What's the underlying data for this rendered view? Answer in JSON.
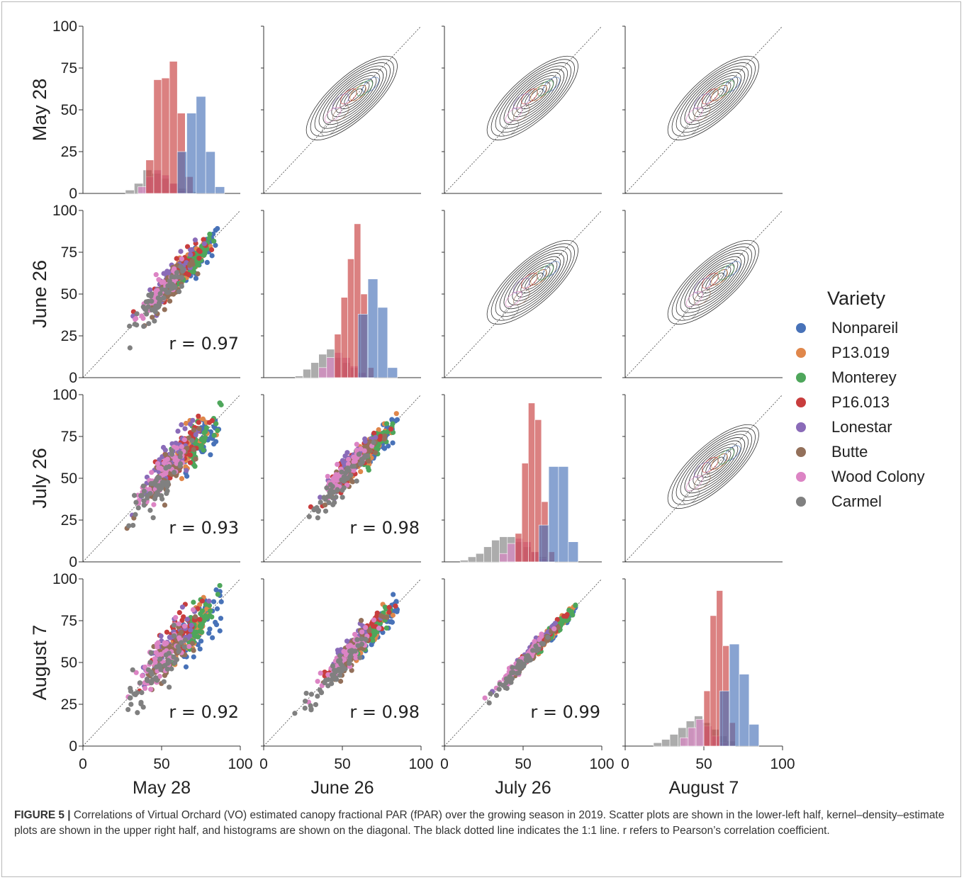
{
  "chart_data": {
    "type": "scatter",
    "variables": [
      "May 28",
      "June 26",
      "July 26",
      "August 7"
    ],
    "axis_range": [
      0,
      100
    ],
    "ticks": [
      0,
      25,
      50,
      75,
      100
    ],
    "x_tick_labels": [
      "0",
      "50",
      "100"
    ],
    "y_tick_labels": [
      "0",
      "25",
      "50",
      "75",
      "100"
    ],
    "legend": {
      "title": "Variety",
      "placement": "right",
      "items": [
        {
          "name": "Nonpareil",
          "color": "#4872b8"
        },
        {
          "name": "P13.019",
          "color": "#e0874b"
        },
        {
          "name": "Monterey",
          "color": "#4ea65b"
        },
        {
          "name": "P16.013",
          "color": "#c83d3d"
        },
        {
          "name": "Lonestar",
          "color": "#8a6bb8"
        },
        {
          "name": "Butte",
          "color": "#93705a"
        },
        {
          "name": "Wood Colony",
          "color": "#dc84c4"
        },
        {
          "name": "Carmel",
          "color": "#808080"
        }
      ]
    },
    "correlations": [
      {
        "x": "May 28",
        "y": "June 26",
        "r": 0.97,
        "label": "r = 0.97"
      },
      {
        "x": "May 28",
        "y": "July 26",
        "r": 0.93,
        "label": "r = 0.93"
      },
      {
        "x": "June 26",
        "y": "July 26",
        "r": 0.98,
        "label": "r = 0.98"
      },
      {
        "x": "May 28",
        "y": "August 7",
        "r": 0.92,
        "label": "r = 0.92"
      },
      {
        "x": "June 26",
        "y": "August 7",
        "r": 0.98,
        "label": "r = 0.98"
      },
      {
        "x": "July 26",
        "y": "August 7",
        "r": 0.99,
        "label": "r = 0.99"
      }
    ],
    "histograms": [
      {
        "date": "May 28",
        "bars": [
          {
            "variety": "Nonpareil",
            "x0": 60,
            "x1": 90,
            "counts": [
              25,
              48,
              58,
              25,
              4
            ]
          },
          {
            "variety": "P16.013",
            "x0": 40,
            "x1": 70,
            "counts": [
              20,
              68,
              69,
              79,
              48,
              10
            ]
          },
          {
            "variety": "Carmel",
            "x0": 27,
            "x1": 72,
            "counts": [
              2,
              6,
              14,
              12,
              9,
              6,
              3,
              1
            ]
          },
          {
            "variety": "Wood Colony",
            "x0": 35,
            "x1": 65,
            "counts": [
              4,
              10,
              14,
              11,
              6,
              2
            ]
          }
        ]
      },
      {
        "date": "June 26",
        "bars": [
          {
            "variety": "Nonpareil",
            "x0": 60,
            "x1": 85,
            "counts": [
              38,
              59,
              42,
              6
            ]
          },
          {
            "variety": "P16.013",
            "x0": 45,
            "x1": 70,
            "counts": [
              26,
              48,
              71,
              92,
              50,
              6
            ]
          },
          {
            "variety": "Carmel",
            "x0": 20,
            "x1": 70,
            "counts": [
              1,
              5,
              9,
              14,
              17,
              12,
              9,
              6,
              3,
              1
            ]
          },
          {
            "variety": "Wood Colony",
            "x0": 35,
            "x1": 65,
            "counts": [
              6,
              12,
              15,
              12,
              7,
              3
            ]
          }
        ]
      },
      {
        "date": "July 26",
        "bars": [
          {
            "variety": "Nonpareil",
            "x0": 60,
            "x1": 85,
            "counts": [
              22,
              57,
              57,
              12
            ]
          },
          {
            "variety": "P16.013",
            "x0": 45,
            "x1": 70,
            "counts": [
              17,
              59,
              95,
              85,
              36,
              6
            ]
          },
          {
            "variety": "Carmel",
            "x0": 10,
            "x1": 70,
            "counts": [
              1,
              3,
              5,
              9,
              13,
              15,
              15,
              12,
              9,
              6,
              3,
              1
            ]
          },
          {
            "variety": "Wood Colony",
            "x0": 35,
            "x1": 65,
            "counts": [
              5,
              11,
              14,
              12,
              6,
              2
            ]
          }
        ]
      },
      {
        "date": "August 7",
        "bars": [
          {
            "variety": "Nonpareil",
            "x0": 60,
            "x1": 85,
            "counts": [
              33,
              61,
              43,
              13
            ]
          },
          {
            "variety": "P16.013",
            "x0": 50,
            "x1": 70,
            "counts": [
              33,
              78,
              93,
              60,
              14
            ]
          },
          {
            "variety": "Carmel",
            "x0": 18,
            "x1": 70,
            "counts": [
              2,
              4,
              7,
              11,
              15,
              18,
              14,
              10,
              6,
              3
            ]
          },
          {
            "variety": "Wood Colony",
            "x0": 35,
            "x1": 65,
            "counts": [
              5,
              11,
              16,
              12,
              6,
              2
            ]
          }
        ]
      }
    ]
  },
  "caption": {
    "figure_label": "FIGURE 5 |",
    "text": "Correlations of Virtual Orchard (VO) estimated canopy fractional PAR (fPAR) over the growing season in 2019. Scatter plots are shown in the lower-left half, kernel–density–estimate plots are shown in the upper right half, and histograms are shown on the diagonal. The black dotted line indicates the 1:1 line. r refers to Pearson’s correlation coefficient."
  }
}
